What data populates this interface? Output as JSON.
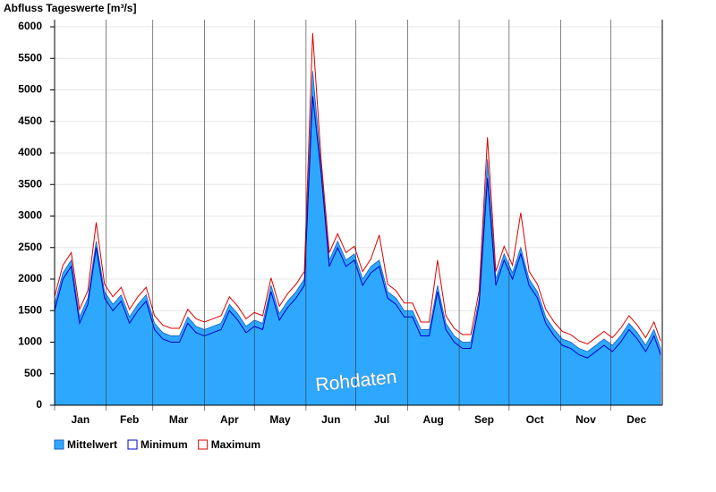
{
  "chart_data": {
    "type": "area",
    "title": "Abfluss Tageswerte [m³/s]",
    "watermark": "Rohdaten",
    "x": [
      0,
      5,
      10,
      15,
      20,
      25,
      30,
      35,
      40,
      45,
      50,
      55,
      60,
      65,
      70,
      75,
      80,
      85,
      90,
      95,
      100,
      105,
      110,
      115,
      120,
      125,
      130,
      135,
      140,
      145,
      150,
      155,
      160,
      165,
      170,
      175,
      180,
      185,
      190,
      195,
      200,
      205,
      210,
      215,
      220,
      225,
      230,
      235,
      240,
      245,
      250,
      255,
      260,
      265,
      270,
      275,
      280,
      285,
      290,
      295,
      300,
      305,
      310,
      315,
      320,
      325,
      330,
      335,
      340,
      345,
      350,
      355,
      360,
      364
    ],
    "xlim": [
      0,
      365
    ],
    "xticks": [
      {
        "value": 0,
        "label": "Jan"
      },
      {
        "value": 31,
        "label": "Feb"
      },
      {
        "value": 59,
        "label": "Mar"
      },
      {
        "value": 90,
        "label": "Apr"
      },
      {
        "value": 120,
        "label": "May"
      },
      {
        "value": 151,
        "label": "Jun"
      },
      {
        "value": 181,
        "label": "Jul"
      },
      {
        "value": 212,
        "label": "Aug"
      },
      {
        "value": 243,
        "label": "Sep"
      },
      {
        "value": 273,
        "label": "Oct"
      },
      {
        "value": 304,
        "label": "Nov"
      },
      {
        "value": 334,
        "label": "Dec"
      }
    ],
    "ylim": [
      0,
      6000
    ],
    "yticks": [
      0,
      500,
      1000,
      1500,
      2000,
      2500,
      3000,
      3500,
      4000,
      4500,
      5000,
      5500,
      6000
    ],
    "grid": true,
    "series": [
      {
        "name": "Mittelwert",
        "color": "#2ea8ff",
        "style": "area",
        "values": [
          1600,
          2100,
          2300,
          1400,
          1700,
          2600,
          1800,
          1600,
          1750,
          1400,
          1600,
          1750,
          1300,
          1150,
          1100,
          1100,
          1400,
          1250,
          1200,
          1250,
          1300,
          1600,
          1450,
          1250,
          1350,
          1300,
          1900,
          1450,
          1650,
          1800,
          2000,
          5300,
          3800,
          2300,
          2600,
          2300,
          2400,
          2000,
          2200,
          2300,
          1800,
          1700,
          1500,
          1500,
          1200,
          1200,
          1900,
          1300,
          1100,
          1000,
          1000,
          1700,
          3900,
          2000,
          2400,
          2100,
          2500,
          2000,
          1800,
          1400,
          1200,
          1050,
          1000,
          900,
          850,
          950,
          1050,
          950,
          1100,
          1300,
          1150,
          950,
          1200,
          900
        ]
      },
      {
        "name": "Minimum",
        "color": "#0000cc",
        "style": "line",
        "values": [
          1500,
          2000,
          2200,
          1300,
          1600,
          2500,
          1700,
          1500,
          1650,
          1300,
          1500,
          1650,
          1200,
          1050,
          1000,
          1000,
          1300,
          1150,
          1100,
          1150,
          1200,
          1500,
          1350,
          1150,
          1250,
          1200,
          1800,
          1350,
          1550,
          1700,
          1900,
          4900,
          3700,
          2200,
          2500,
          2200,
          2300,
          1900,
          2100,
          2200,
          1700,
          1600,
          1400,
          1400,
          1100,
          1100,
          1800,
          1200,
          1000,
          900,
          900,
          1600,
          3600,
          1900,
          2300,
          2000,
          2400,
          1900,
          1700,
          1300,
          1100,
          950,
          900,
          800,
          750,
          850,
          950,
          850,
          1000,
          1200,
          1050,
          850,
          1100,
          800
        ]
      },
      {
        "name": "Maximum",
        "color": "#dd0000",
        "style": "line",
        "values": [
          1720,
          2220,
          2420,
          1520,
          1820,
          2900,
          1920,
          1720,
          1870,
          1520,
          1720,
          1870,
          1420,
          1270,
          1220,
          1220,
          1520,
          1370,
          1320,
          1370,
          1420,
          1720,
          1570,
          1370,
          1470,
          1420,
          2020,
          1570,
          1770,
          1920,
          2120,
          5900,
          3920,
          2420,
          2720,
          2420,
          2520,
          2120,
          2320,
          2700,
          1920,
          1820,
          1620,
          1620,
          1320,
          1320,
          2300,
          1420,
          1220,
          1120,
          1120,
          1820,
          4250,
          2120,
          2520,
          2220,
          3050,
          2120,
          1920,
          1520,
          1320,
          1170,
          1120,
          1020,
          970,
          1070,
          1170,
          1070,
          1220,
          1420,
          1270,
          1070,
          1320,
          1020
        ]
      }
    ]
  }
}
